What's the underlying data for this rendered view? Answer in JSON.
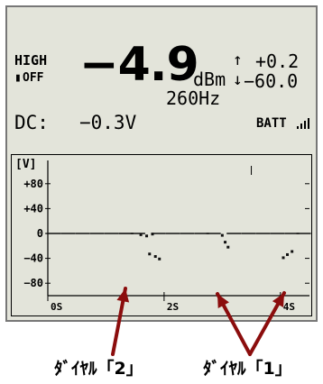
{
  "display": {
    "range_label": "HIGH",
    "hold_label": "OFF",
    "hold_icon": "pause-icon",
    "main_value": "−4.9",
    "main_unit": "dBm",
    "max_arrow": "↑",
    "max_value": "+0.2",
    "min_arrow": "↓",
    "min_value": "−60.0",
    "frequency": "260Hz",
    "dc_label": "DC:",
    "dc_value": "−0.3V",
    "battery_label": "BATT",
    "battery_icon": "battery-bars-icon"
  },
  "graph": {
    "unit_label": "[V]",
    "y_ticks": [
      "+80",
      "+40",
      "0",
      "−40",
      "−80"
    ],
    "x_ticks": [
      "0S",
      "2S",
      "4S"
    ]
  },
  "chart_data": {
    "type": "scatter",
    "title": "",
    "xlabel": "",
    "ylabel": "[V]",
    "xlim": [
      0,
      4.5
    ],
    "ylim": [
      -100,
      100
    ],
    "x_ticks": [
      0,
      2,
      4
    ],
    "y_ticks": [
      80,
      40,
      0,
      -40,
      -80
    ],
    "grid": false,
    "series": [
      {
        "points": [
          [
            0.1,
            0
          ],
          [
            0.35,
            0
          ],
          [
            0.6,
            0
          ],
          [
            0.85,
            0
          ],
          [
            1.1,
            0
          ],
          [
            1.35,
            0
          ],
          [
            1.55,
            0
          ],
          [
            1.6,
            -2
          ],
          [
            1.7,
            -4
          ],
          [
            1.8,
            -1
          ],
          [
            1.9,
            0
          ],
          [
            1.75,
            -33
          ],
          [
            1.85,
            -37
          ],
          [
            1.92,
            -41
          ],
          [
            2.15,
            0
          ],
          [
            2.4,
            0
          ],
          [
            2.65,
            0
          ],
          [
            2.85,
            0
          ],
          [
            3.0,
            -3
          ],
          [
            3.05,
            -14
          ],
          [
            3.1,
            -22
          ],
          [
            3.2,
            0
          ],
          [
            3.45,
            0
          ],
          [
            3.7,
            0
          ],
          [
            3.95,
            0
          ],
          [
            4.2,
            0
          ],
          [
            4.4,
            0
          ],
          [
            4.05,
            -39
          ],
          [
            4.12,
            -34
          ],
          [
            4.2,
            -29
          ]
        ]
      }
    ]
  },
  "annotations": {
    "label_left": "ﾀﾞｲﾔﾙ「2」",
    "label_right": "ﾀﾞｲﾔﾙ「1」",
    "arrow_color": "#8b0d0d"
  }
}
